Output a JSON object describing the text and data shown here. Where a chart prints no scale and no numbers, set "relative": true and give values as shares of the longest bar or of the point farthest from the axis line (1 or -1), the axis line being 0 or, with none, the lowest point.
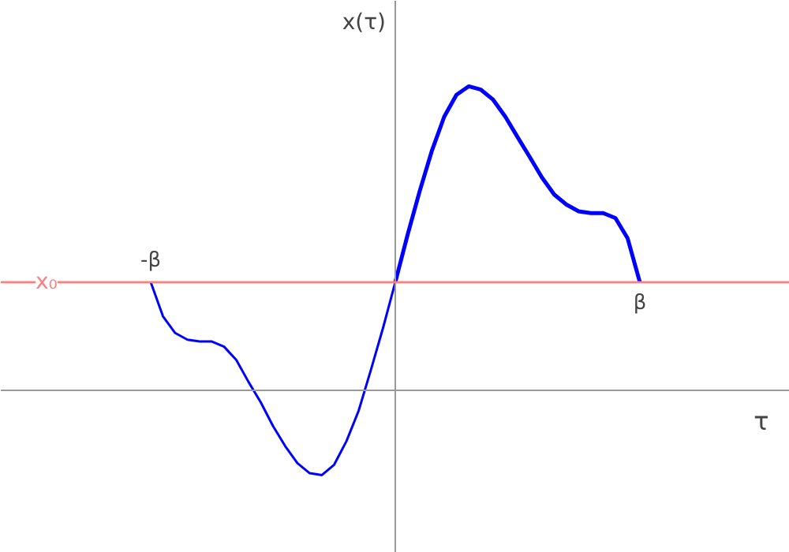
{
  "chart_data": {
    "type": "line",
    "relative": true,
    "xlabel": "τ",
    "ylabel": "x(τ)",
    "marker": "none",
    "line_style": "solid",
    "categories": [
      null,
      null,
      null,
      null,
      null,
      null,
      null,
      null,
      null,
      null,
      null,
      null,
      null,
      null,
      null,
      null,
      null,
      null,
      null,
      null,
      null,
      null,
      null,
      null,
      null,
      null,
      null,
      null,
      null,
      null,
      null,
      null,
      null,
      null,
      null,
      null,
      null,
      null,
      null,
      null,
      null,
      null,
      null,
      null,
      null,
      null,
      null,
      null,
      null,
      null,
      null,
      null,
      null,
      null,
      null,
      null,
      null,
      null,
      null,
      null,
      null
    ],
    "series": [
      {
        "color": "#0000ff",
        "values": [
          null,
          null,
          null,
          null,
          null,
          null,
          null,
          null,
          null,
          null,
          0.356,
          0.244,
          0.189,
          0.167,
          0.161,
          0.161,
          0.144,
          0.1,
          0.028,
          -0.039,
          -0.117,
          -0.183,
          -0.239,
          -0.272,
          -0.278,
          -0.244,
          -0.167,
          -0.067,
          0.067,
          0.206,
          0.356,
          null,
          null,
          null,
          null,
          null,
          null,
          null,
          null,
          null,
          null,
          null,
          null,
          null,
          null,
          null,
          null,
          null,
          null,
          null,
          null,
          null,
          null,
          null,
          null,
          null,
          null,
          null,
          null,
          null,
          null
        ]
      },
      {
        "color": "#0000ff",
        "values": [
          null,
          null,
          null,
          null,
          null,
          null,
          null,
          null,
          null,
          null,
          null,
          null,
          null,
          null,
          null,
          null,
          null,
          null,
          null,
          null,
          null,
          null,
          null,
          null,
          null,
          null,
          null,
          null,
          null,
          null,
          0.356,
          0.511,
          0.656,
          0.789,
          0.9,
          0.972,
          1.0,
          0.989,
          0.956,
          0.9,
          0.833,
          0.767,
          0.7,
          0.644,
          0.611,
          0.589,
          0.583,
          0.583,
          0.567,
          0.5,
          0.356,
          null,
          null,
          null,
          null,
          null,
          null,
          null,
          null,
          null,
          null
        ]
      }
    ],
    "ref_lines": [
      {
        "axis": "y",
        "value": 0.356,
        "label": "x₀",
        "color": "#ff7f7f"
      }
    ],
    "annotations": [
      "-β",
      "β"
    ]
  }
}
